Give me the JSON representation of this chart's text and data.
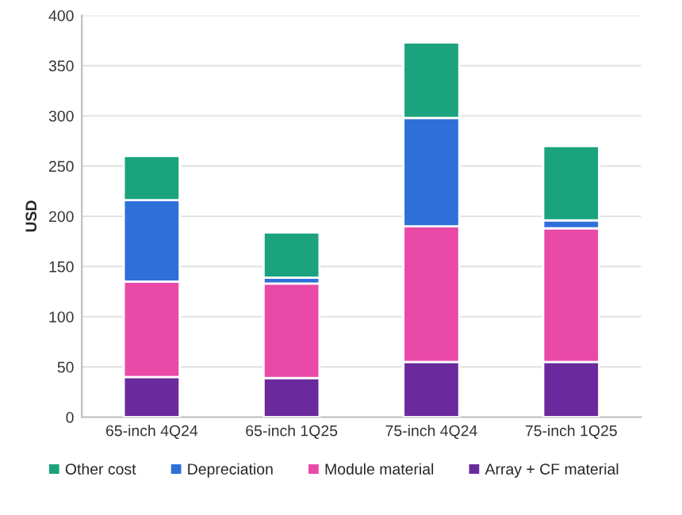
{
  "chart_data": {
    "type": "bar",
    "ylabel": "USD",
    "categories": [
      "65-inch 4Q24",
      "65-inch 1Q25",
      "75-inch 4Q24",
      "75-inch 1Q25"
    ],
    "stacked": true,
    "series": [
      {
        "name": "Array + CF material",
        "color": "#6a2a9e",
        "values": [
          40,
          39,
          55,
          55
        ]
      },
      {
        "name": "Module material",
        "color": "#e94aa8",
        "values": [
          95,
          94,
          135,
          133
        ]
      },
      {
        "name": "Depreciation",
        "color": "#2f6fd8",
        "values": [
          81,
          6,
          108,
          8
        ]
      },
      {
        "name": "Other cost",
        "color": "#1aa37d",
        "values": [
          44,
          45,
          75,
          74
        ]
      }
    ],
    "ylim": [
      0,
      400
    ],
    "yticks": [
      0,
      50,
      100,
      150,
      200,
      250,
      300,
      350,
      400
    ],
    "grid": "y",
    "legend": "bottom"
  }
}
